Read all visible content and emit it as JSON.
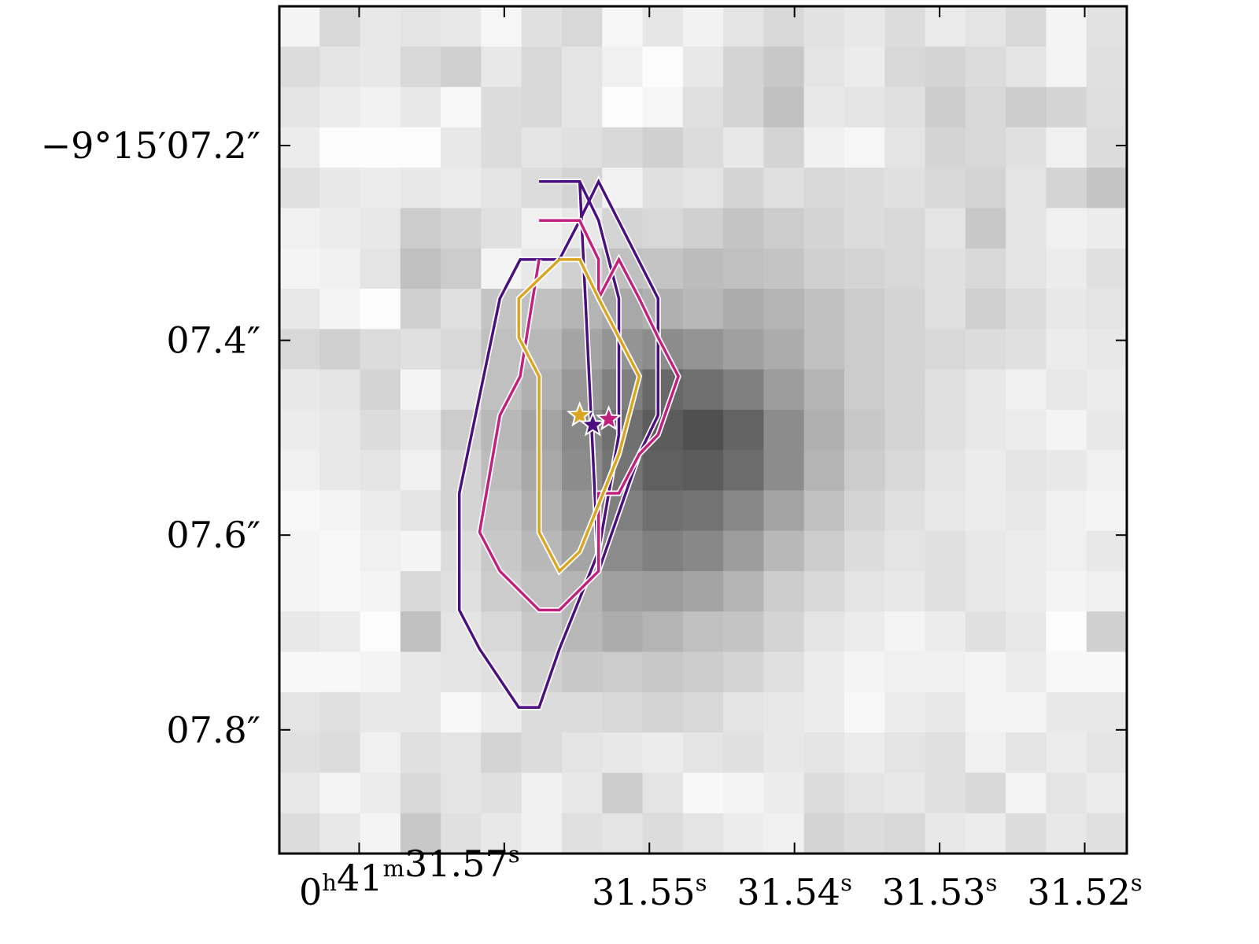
{
  "chart_data": {
    "type": "heatmap",
    "title": "",
    "xlabel": "",
    "ylabel": "",
    "x_axis": {
      "coordinate": "Right Ascension",
      "tick_labels": [
        {
          "h": "0",
          "m": "41",
          "s": "31.57",
          "prefix": true
        },
        {
          "s": "31.55"
        },
        {
          "s": "31.54"
        },
        {
          "s": "31.53"
        },
        {
          "s": "31.52"
        }
      ],
      "tick_seconds": [
        31.57,
        31.56,
        31.55,
        31.54,
        31.53,
        31.52
      ],
      "range_seconds": [
        31.5755,
        31.5171
      ]
    },
    "y_axis": {
      "coordinate": "Declination",
      "tick_labels": [
        "−9°15′07.2″",
        "07.4″",
        "07.6″",
        "07.8″"
      ],
      "tick_arcsec": [
        7.2,
        7.4,
        7.6,
        7.8
      ],
      "range_arcsec": [
        7.057,
        7.927
      ]
    },
    "colormap": "gray_r",
    "grid": false,
    "image_pixels": {
      "columns": 21,
      "rows": 21,
      "intensity_0_to_1": [
        [
          0.04,
          0.18,
          0.1,
          0.12,
          0.1,
          0.03,
          0.14,
          0.18,
          0.03,
          0.11,
          0.05,
          0.12,
          0.18,
          0.13,
          0.1,
          0.16,
          0.09,
          0.12,
          0.18,
          0.04,
          0.13
        ],
        [
          0.16,
          0.12,
          0.1,
          0.18,
          0.22,
          0.1,
          0.18,
          0.12,
          0.06,
          0.0,
          0.1,
          0.2,
          0.26,
          0.12,
          0.08,
          0.18,
          0.2,
          0.16,
          0.12,
          0.04,
          0.14
        ],
        [
          0.12,
          0.08,
          0.05,
          0.1,
          0.02,
          0.16,
          0.18,
          0.12,
          0.0,
          0.03,
          0.14,
          0.2,
          0.3,
          0.1,
          0.12,
          0.14,
          0.24,
          0.18,
          0.24,
          0.2,
          0.15
        ],
        [
          0.08,
          0.0,
          0.0,
          0.0,
          0.1,
          0.16,
          0.12,
          0.14,
          0.18,
          0.22,
          0.16,
          0.1,
          0.2,
          0.06,
          0.03,
          0.12,
          0.2,
          0.18,
          0.14,
          0.06,
          0.16
        ],
        [
          0.14,
          0.1,
          0.08,
          0.1,
          0.08,
          0.12,
          0.16,
          0.2,
          0.05,
          0.14,
          0.12,
          0.2,
          0.14,
          0.18,
          0.16,
          0.14,
          0.18,
          0.2,
          0.12,
          0.2,
          0.28
        ],
        [
          0.06,
          0.08,
          0.1,
          0.24,
          0.2,
          0.14,
          0.06,
          0.1,
          0.2,
          0.18,
          0.22,
          0.28,
          0.24,
          0.2,
          0.16,
          0.18,
          0.12,
          0.26,
          0.12,
          0.06,
          0.08
        ],
        [
          0.04,
          0.06,
          0.12,
          0.3,
          0.24,
          0.04,
          0.1,
          0.22,
          0.3,
          0.28,
          0.32,
          0.3,
          0.28,
          0.22,
          0.2,
          0.18,
          0.14,
          0.18,
          0.12,
          0.08,
          0.14
        ],
        [
          0.1,
          0.04,
          0.0,
          0.22,
          0.14,
          0.28,
          0.3,
          0.36,
          0.42,
          0.38,
          0.34,
          0.4,
          0.36,
          0.3,
          0.24,
          0.2,
          0.14,
          0.22,
          0.16,
          0.1,
          0.12
        ],
        [
          0.18,
          0.22,
          0.16,
          0.14,
          0.18,
          0.3,
          0.34,
          0.44,
          0.52,
          0.56,
          0.52,
          0.46,
          0.4,
          0.3,
          0.24,
          0.2,
          0.18,
          0.16,
          0.14,
          0.08,
          0.1
        ],
        [
          0.1,
          0.12,
          0.2,
          0.04,
          0.14,
          0.3,
          0.38,
          0.5,
          0.62,
          0.74,
          0.7,
          0.62,
          0.48,
          0.36,
          0.24,
          0.2,
          0.14,
          0.1,
          0.06,
          0.1,
          0.08
        ],
        [
          0.08,
          0.1,
          0.16,
          0.1,
          0.24,
          0.34,
          0.44,
          0.58,
          0.7,
          0.8,
          0.86,
          0.76,
          0.56,
          0.38,
          0.26,
          0.2,
          0.14,
          0.1,
          0.08,
          0.04,
          0.1
        ],
        [
          0.06,
          0.1,
          0.12,
          0.06,
          0.2,
          0.32,
          0.42,
          0.56,
          0.68,
          0.78,
          0.8,
          0.72,
          0.56,
          0.36,
          0.24,
          0.18,
          0.12,
          0.08,
          0.12,
          0.1,
          0.06
        ],
        [
          0.02,
          0.04,
          0.08,
          0.12,
          0.2,
          0.28,
          0.38,
          0.5,
          0.62,
          0.7,
          0.68,
          0.58,
          0.44,
          0.3,
          0.2,
          0.14,
          0.1,
          0.08,
          0.1,
          0.06,
          0.04
        ],
        [
          0.04,
          0.02,
          0.06,
          0.04,
          0.16,
          0.26,
          0.34,
          0.44,
          0.56,
          0.62,
          0.58,
          0.48,
          0.34,
          0.24,
          0.16,
          0.12,
          0.14,
          0.1,
          0.08,
          0.06,
          0.1
        ],
        [
          0.04,
          0.02,
          0.04,
          0.18,
          0.14,
          0.24,
          0.3,
          0.36,
          0.46,
          0.48,
          0.44,
          0.36,
          0.24,
          0.18,
          0.12,
          0.1,
          0.14,
          0.1,
          0.08,
          0.04,
          0.06
        ],
        [
          0.1,
          0.08,
          0.0,
          0.3,
          0.12,
          0.18,
          0.26,
          0.34,
          0.4,
          0.36,
          0.3,
          0.28,
          0.2,
          0.12,
          0.08,
          0.04,
          0.08,
          0.14,
          0.1,
          0.0,
          0.22
        ],
        [
          0.02,
          0.02,
          0.04,
          0.1,
          0.12,
          0.14,
          0.22,
          0.26,
          0.24,
          0.26,
          0.24,
          0.2,
          0.14,
          0.08,
          0.04,
          0.06,
          0.06,
          0.04,
          0.08,
          0.02,
          0.02
        ],
        [
          0.12,
          0.14,
          0.1,
          0.1,
          0.02,
          0.08,
          0.16,
          0.16,
          0.18,
          0.2,
          0.18,
          0.12,
          0.1,
          0.08,
          0.02,
          0.08,
          0.1,
          0.04,
          0.04,
          0.1,
          0.1
        ],
        [
          0.14,
          0.16,
          0.06,
          0.14,
          0.12,
          0.2,
          0.16,
          0.12,
          0.1,
          0.08,
          0.12,
          0.14,
          0.1,
          0.12,
          0.08,
          0.12,
          0.14,
          0.06,
          0.12,
          0.08,
          0.12
        ],
        [
          0.1,
          0.04,
          0.08,
          0.18,
          0.12,
          0.14,
          0.06,
          0.1,
          0.24,
          0.12,
          0.02,
          0.04,
          0.08,
          0.16,
          0.12,
          0.1,
          0.14,
          0.18,
          0.04,
          0.12,
          0.08
        ],
        [
          0.16,
          0.1,
          0.04,
          0.26,
          0.14,
          0.1,
          0.06,
          0.14,
          0.12,
          0.16,
          0.12,
          0.08,
          0.06,
          0.2,
          0.16,
          0.18,
          0.1,
          0.08,
          0.16,
          0.1,
          0.14
        ]
      ]
    },
    "contours": [
      {
        "color": "#4b0f7f",
        "x_seconds": [
          31.5576,
          31.5548,
          31.5535,
          31.5521,
          31.5521,
          31.5535,
          31.5562,
          31.5576,
          31.559,
          31.5617,
          31.5631,
          31.5631,
          31.5603,
          31.5589,
          31.5562,
          31.5548,
          31.5535,
          31.5494,
          31.5494,
          31.5507,
          31.5535,
          31.5548
        ],
        "y_arcsec": [
          7.237,
          7.237,
          7.277,
          7.357,
          7.497,
          7.617,
          7.717,
          7.777,
          7.777,
          7.717,
          7.677,
          7.557,
          7.357,
          7.317,
          7.317,
          7.277,
          7.237,
          7.357,
          7.477,
          7.517,
          7.637,
          7.237
        ],
        "y_note": "closed outer ring"
      },
      {
        "color": "#c2207f",
        "x_seconds": [
          31.5576,
          31.5548,
          31.5535,
          31.5535,
          31.5521,
          31.5507,
          31.5494,
          31.548,
          31.5494,
          31.5507,
          31.5521,
          31.5535,
          31.5535,
          31.5562,
          31.5576,
          31.5603,
          31.5617,
          31.5603,
          31.5589,
          31.5576
        ],
        "y_arcsec": [
          7.277,
          7.277,
          7.317,
          7.357,
          7.317,
          7.357,
          7.397,
          7.437,
          7.497,
          7.517,
          7.557,
          7.557,
          7.637,
          7.677,
          7.677,
          7.637,
          7.597,
          7.477,
          7.437,
          7.317
        ],
        "y_note": "middle ring"
      },
      {
        "color": "#daa520",
        "x_seconds": [
          31.5562,
          31.5548,
          31.5535,
          31.5535,
          31.5507,
          31.5521,
          31.5548,
          31.5562,
          31.5576,
          31.5576,
          31.559,
          31.559,
          31.5562
        ],
        "y_arcsec": [
          7.317,
          7.317,
          7.357,
          7.357,
          7.437,
          7.517,
          7.617,
          7.637,
          7.597,
          7.437,
          7.397,
          7.357,
          7.317
        ],
        "y_note": "inner ring"
      }
    ],
    "markers": [
      {
        "shape": "star",
        "color": "#daa520",
        "x_seconds": 31.5548,
        "y_arcsec": 7.477
      },
      {
        "shape": "star",
        "color": "#4b0f7f",
        "x_seconds": 31.5539,
        "y_arcsec": 7.487
      },
      {
        "shape": "star",
        "color": "#c2207f",
        "x_seconds": 31.5528,
        "y_arcsec": 7.481
      }
    ]
  }
}
